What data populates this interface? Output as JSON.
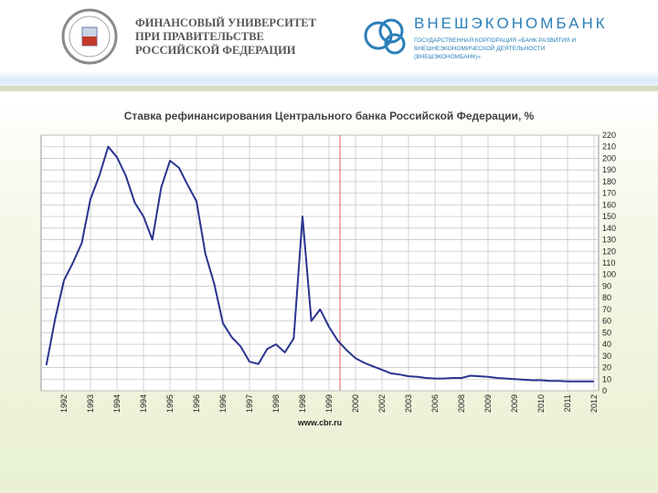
{
  "header": {
    "left_logo": [
      "ФИНАНСОВЫЙ УНИВЕРСИТЕТ",
      "ПРИ ПРАВИТЕЛЬСТВЕ",
      "РОССИЙСКОЙ ФЕДЕРАЦИИ"
    ],
    "right_logo": "ВНЕШЭКОНОМБАНК",
    "right_subtitle": "ГОСУДАРСТВЕННАЯ КОРПОРАЦИЯ «БАНК РАЗВИТИЯ И ВНЕШНЕЭКОНОМИЧЕСКОЙ ДЕЯТЕЛЬНОСТИ (ВНЕШЭКОНОМБАНК)»"
  },
  "chart_data": {
    "type": "line",
    "title": "Ставка рефинансирования Центрального банка Российской Федерации, %",
    "source": "www.cbr.ru",
    "categories": [
      null,
      null,
      "1992",
      null,
      null,
      "1993",
      null,
      null,
      "1994",
      null,
      null,
      "1994",
      null,
      null,
      "1995",
      null,
      null,
      "1996",
      null,
      null,
      "1996",
      null,
      null,
      "1997",
      null,
      null,
      "1998",
      null,
      null,
      "1998",
      null,
      null,
      "1999",
      null,
      null,
      "2000",
      null,
      null,
      "2002",
      null,
      null,
      "2003",
      null,
      null,
      "2006",
      null,
      null,
      "2008",
      null,
      null,
      "2009",
      null,
      null,
      "2009",
      null,
      null,
      "2010",
      null,
      null,
      "2011",
      null,
      null,
      "2012"
    ],
    "values": [
      22,
      62,
      95,
      110,
      127,
      165,
      185,
      210,
      201,
      185,
      162,
      150,
      130,
      175,
      198,
      192,
      177,
      163,
      118,
      92,
      58,
      46,
      38,
      25,
      23,
      36,
      40,
      33,
      45,
      150,
      60,
      70,
      55,
      43,
      35,
      28,
      24,
      21,
      18,
      15,
      14,
      12.5,
      12,
      11,
      10.5,
      10.5,
      11,
      11,
      13,
      12.5,
      12,
      11,
      10.5,
      10,
      9.5,
      9,
      9,
      8.5,
      8.5,
      8,
      8,
      8,
      8
    ],
    "color": "#2a3590",
    "ylim": [
      0,
      220
    ],
    "yticks": [
      0,
      10,
      20,
      30,
      40,
      50,
      60,
      70,
      80,
      90,
      100,
      110,
      120,
      130,
      140,
      150,
      160,
      170,
      180,
      190,
      200,
      210,
      220
    ],
    "grid": true
  }
}
